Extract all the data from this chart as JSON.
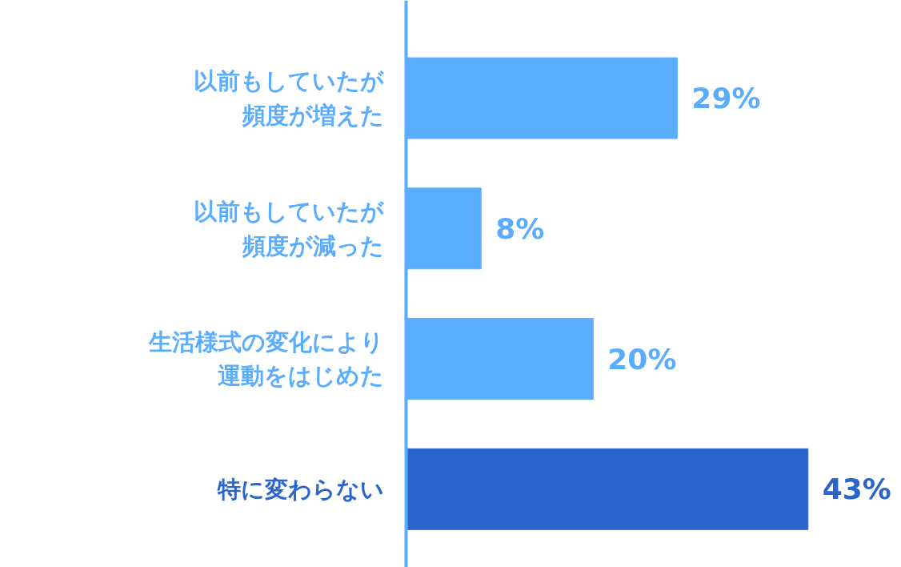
{
  "chart_data": {
    "type": "bar",
    "orientation": "horizontal",
    "categories": [
      "以前もしていたが頻度が増えた",
      "以前もしていたが頻度が減った",
      "生活様式の変化により運動をはじめた",
      "特に変わらない"
    ],
    "values": [
      29,
      8,
      20,
      43
    ],
    "colors": [
      "#5aacff",
      "#5aacff",
      "#5aacff",
      "#2a65cc"
    ],
    "value_labels": [
      "29%",
      "8%",
      "20%",
      "43%"
    ],
    "xlim": [
      0,
      53
    ],
    "tick_labels": false,
    "grid": false
  }
}
